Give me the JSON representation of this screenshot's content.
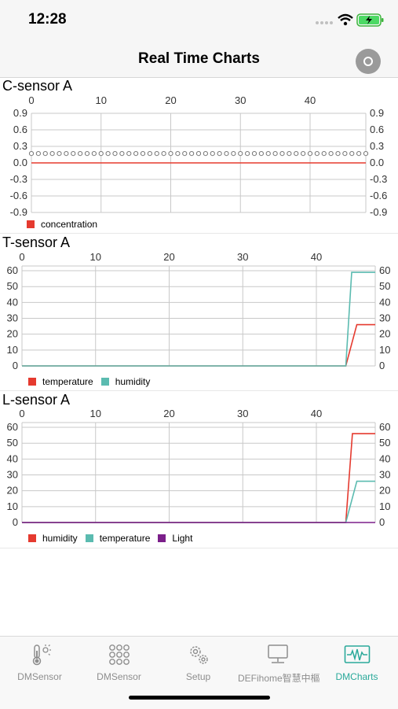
{
  "status_bar": {
    "time": "12:28"
  },
  "nav": {
    "title": "Real Time Charts"
  },
  "charts": [
    {
      "title": "C-sensor A",
      "x_ticks": [
        "0",
        "10",
        "20",
        "30",
        "40"
      ],
      "y_ticks": [
        "0.9",
        "0.6",
        "0.3",
        "0.0",
        "-0.3",
        "-0.6",
        "-0.9"
      ],
      "legend": [
        {
          "label": "concentration",
          "color": "#e53a2f"
        }
      ]
    },
    {
      "title": "T-sensor A",
      "x_ticks": [
        "0",
        "10",
        "20",
        "30",
        "40"
      ],
      "y_ticks": [
        "60",
        "50",
        "40",
        "30",
        "20",
        "10",
        "0"
      ],
      "legend": [
        {
          "label": "temperature",
          "color": "#e53a2f"
        },
        {
          "label": "humidity",
          "color": "#5bbbb0"
        }
      ]
    },
    {
      "title": "L-sensor A",
      "x_ticks": [
        "0",
        "10",
        "20",
        "30",
        "40"
      ],
      "y_ticks": [
        "60",
        "50",
        "40",
        "30",
        "20",
        "10",
        "0"
      ],
      "legend": [
        {
          "label": "humidity",
          "color": "#e53a2f"
        },
        {
          "label": "temperature",
          "color": "#5bbbb0"
        },
        {
          "label": "Light",
          "color": "#7b1f8a"
        }
      ]
    }
  ],
  "chart_data": [
    {
      "type": "line",
      "title": "C-sensor A",
      "xlim": [
        0,
        48
      ],
      "ylim": [
        -0.9,
        0.9
      ],
      "series": [
        {
          "name": "concentration",
          "color": "#e53a2f",
          "x": [
            0,
            48
          ],
          "y": [
            0.0,
            0.0
          ]
        }
      ],
      "markers": {
        "y": 0.17,
        "x_start": 0,
        "x_end": 48,
        "step": 1
      }
    },
    {
      "type": "line",
      "title": "T-sensor A",
      "xlim": [
        0,
        48
      ],
      "ylim": [
        0,
        63
      ],
      "series": [
        {
          "name": "temperature",
          "color": "#e53a2f",
          "x": [
            0,
            44,
            45.5,
            48
          ],
          "y": [
            0,
            0,
            26,
            26
          ]
        },
        {
          "name": "humidity",
          "color": "#5bbbb0",
          "x": [
            0,
            44,
            44.8,
            48
          ],
          "y": [
            0,
            0,
            59,
            59
          ]
        }
      ]
    },
    {
      "type": "line",
      "title": "L-sensor A",
      "xlim": [
        0,
        48
      ],
      "ylim": [
        0,
        63
      ],
      "series": [
        {
          "name": "humidity",
          "color": "#e53a2f",
          "x": [
            0,
            44,
            44.9,
            48
          ],
          "y": [
            0,
            0,
            56,
            56
          ]
        },
        {
          "name": "temperature",
          "color": "#5bbbb0",
          "x": [
            0,
            44,
            45.5,
            48
          ],
          "y": [
            0,
            0,
            26,
            26
          ]
        },
        {
          "name": "Light",
          "color": "#7b1f8a",
          "x": [
            0,
            48
          ],
          "y": [
            0,
            0
          ]
        }
      ]
    }
  ],
  "tabs": [
    {
      "label": "DMSensor",
      "icon": "thermometer-sun-icon",
      "active": false
    },
    {
      "label": "DMSensor",
      "icon": "grid-dots-icon",
      "active": false
    },
    {
      "label": "Setup",
      "icon": "gears-icon",
      "active": false
    },
    {
      "label": "DEFihome智慧中樞",
      "icon": "monitor-icon",
      "active": false
    },
    {
      "label": "DMCharts",
      "icon": "waveform-icon",
      "active": true
    }
  ],
  "colors": {
    "accent": "#2aa99a",
    "grid": "#c8c8c8"
  }
}
